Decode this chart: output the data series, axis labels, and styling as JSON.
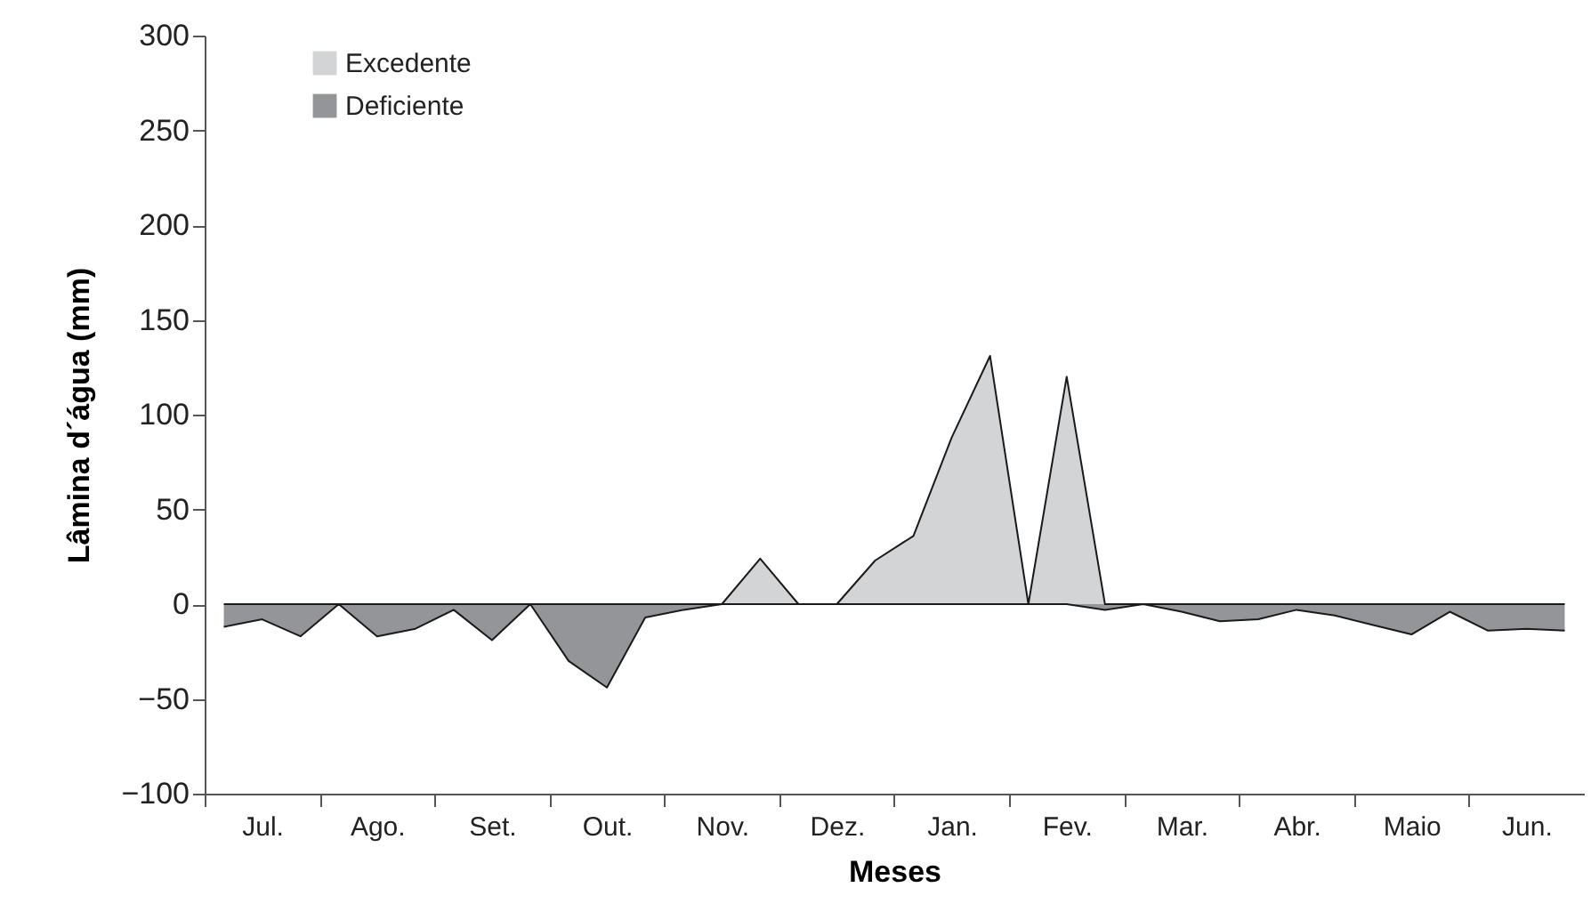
{
  "chart_data": {
    "type": "area",
    "xlabel": "Meses",
    "ylabel": "Lâmina d´água (mm)",
    "categories": [
      null,
      "Jul.",
      null,
      null,
      "Ago.",
      null,
      null,
      "Set.",
      null,
      null,
      "Out.",
      null,
      null,
      "Nov.",
      null,
      null,
      "Dez.",
      null,
      null,
      "Jan.",
      null,
      null,
      "Fev.",
      null,
      null,
      "Mar.",
      null,
      null,
      "Abr.",
      null,
      null,
      "Maio",
      null,
      null,
      "Jun.",
      null
    ],
    "series": [
      {
        "name": "Excedente",
        "color": "#d3d4d6",
        "values": [
          0,
          0,
          0,
          0,
          0,
          0,
          0,
          0,
          0,
          0,
          0,
          0,
          0,
          0,
          24,
          0,
          0,
          23,
          36,
          88,
          131,
          0,
          120,
          0,
          0,
          0,
          0,
          0,
          0,
          0,
          0,
          0,
          0,
          0,
          0,
          0
        ]
      },
      {
        "name": "Deficiente",
        "color": "#939598",
        "values": [
          -12,
          -8,
          -17,
          0,
          -17,
          -13,
          -3,
          -19,
          0,
          -30,
          -44,
          -7,
          -3,
          0,
          0,
          0,
          0,
          0,
          0,
          0,
          0,
          0,
          0,
          -3,
          0,
          -4,
          -9,
          -8,
          -3,
          -6,
          -11,
          -16,
          -4,
          -14,
          -13,
          -14
        ]
      }
    ],
    "ylim": [
      -100,
      300
    ],
    "yticks": [
      -100,
      -50,
      0,
      50,
      100,
      150,
      200,
      250,
      300
    ],
    "legend": "top left",
    "grid": false
  }
}
